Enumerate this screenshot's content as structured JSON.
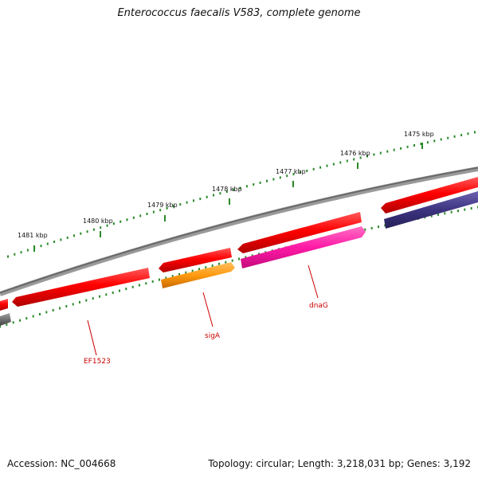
{
  "title": "Enterococcus faecalis V583, complete genome",
  "footer": {
    "accession": "Accession: NC_004668",
    "summary": "Topology: circular; Length: 3,218,031 bp; Genes: 3,192"
  },
  "scale": {
    "unit": "kbp",
    "ticks": [
      1481,
      1480,
      1479,
      1478,
      1477,
      1476,
      1475
    ],
    "labels": [
      "1481 kbp",
      "1480 kbp",
      "1479 kbp",
      "1478 kbp",
      "1477 kbp",
      "1476 kbp",
      "1475 kbp"
    ],
    "tick_color": "#2a8a2a"
  },
  "backbone_color": "#7a7a7a",
  "genes": [
    {
      "name": "EF1523",
      "strand": "reverse",
      "color": "#e60000",
      "labeled": true
    },
    {
      "name": "sigA",
      "strand": "forward",
      "color": "#ff8c00",
      "labeled": true
    },
    {
      "name": "dnaG",
      "strand": "forward",
      "color": "#ff1a8c",
      "labeled": true
    }
  ],
  "gene_colors": {
    "reverse_cds": "#e60000",
    "forward_other": "#3d3480",
    "forward_left": "#555555"
  }
}
